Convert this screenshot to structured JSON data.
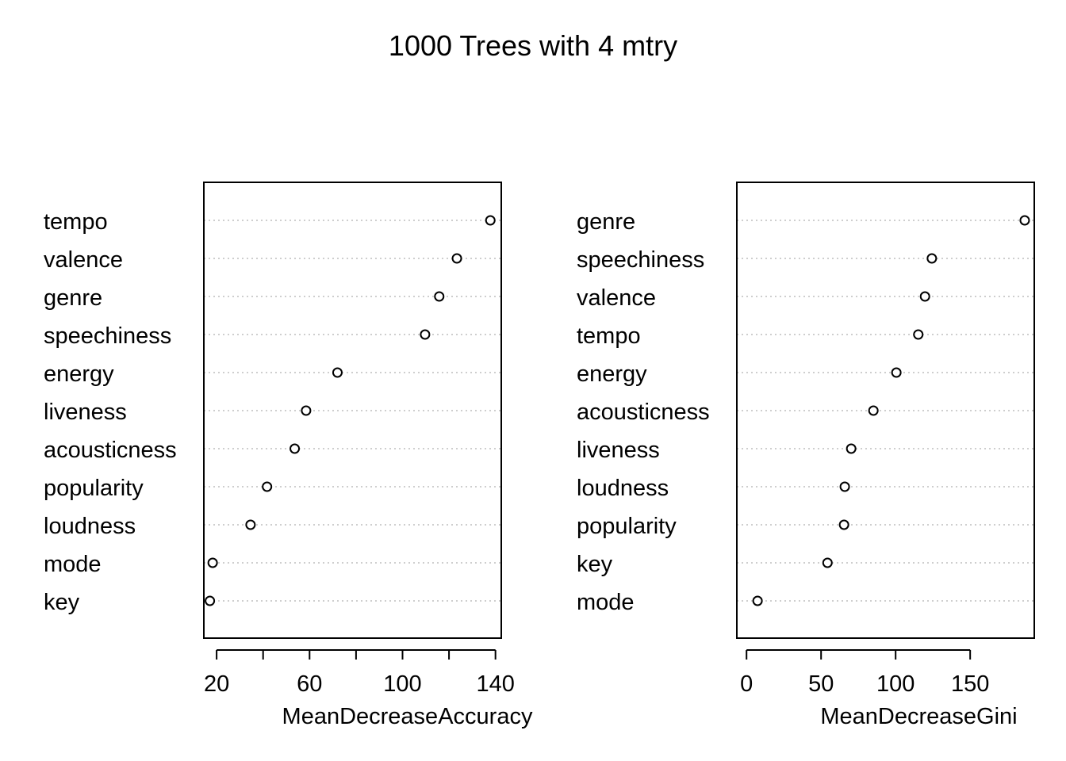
{
  "title": "1000 Trees with 4 mtry",
  "chart_data": [
    {
      "type": "scatter",
      "subtype": "dotchart",
      "xlabel": "MeanDecreaseAccuracy",
      "ylabel": "",
      "xlim": [
        14.5,
        142.5
      ],
      "xticks": [
        20,
        40,
        60,
        80,
        100,
        120,
        140
      ],
      "xtick_labels": [
        "20",
        "",
        "60",
        "",
        "100",
        "",
        "140"
      ],
      "grid": "dotted-horizontal",
      "categories": [
        "tempo",
        "valence",
        "genre",
        "speechiness",
        "energy",
        "liveness",
        "acousticness",
        "popularity",
        "loudness",
        "mode",
        "key"
      ],
      "values": [
        137.8,
        123.4,
        115.8,
        109.7,
        72.0,
        58.5,
        53.6,
        41.7,
        34.6,
        18.3,
        17.1
      ]
    },
    {
      "type": "scatter",
      "subtype": "dotchart",
      "xlabel": "MeanDecreaseGini",
      "ylabel": "",
      "xlim": [
        -6.5,
        193
      ],
      "xticks": [
        0,
        50,
        100,
        150
      ],
      "xtick_labels": [
        "0",
        "50",
        "100",
        "150"
      ],
      "grid": "dotted-horizontal",
      "categories": [
        "genre",
        "speechiness",
        "valence",
        "tempo",
        "energy",
        "acousticness",
        "liveness",
        "loudness",
        "popularity",
        "key",
        "mode"
      ],
      "values": [
        186.6,
        124.3,
        119.7,
        115.2,
        100.5,
        85.1,
        70.2,
        65.9,
        65.4,
        54.3,
        7.4
      ]
    }
  ]
}
